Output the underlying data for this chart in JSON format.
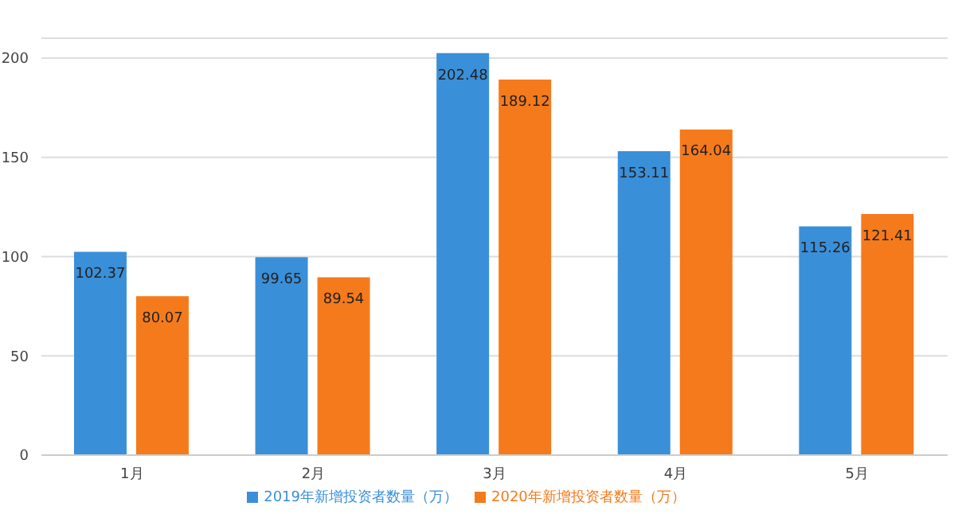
{
  "chart_data": {
    "type": "bar",
    "categories": [
      "1月",
      "2月",
      "3月",
      "4月",
      "5月"
    ],
    "series": [
      {
        "name": "2019年新增投资者数量（万）",
        "color": "#3a8fd9",
        "values": [
          102.37,
          99.65,
          202.48,
          153.11,
          115.26
        ]
      },
      {
        "name": "2020年新增投资者数量（万）",
        "color": "#f57a1c",
        "values": [
          80.07,
          89.54,
          189.12,
          164.04,
          121.41
        ]
      }
    ],
    "ylim": [
      0,
      210
    ],
    "yticks": [
      0,
      50,
      100,
      150,
      200
    ],
    "grid": "y",
    "legend": "bottom",
    "data_labels": true
  }
}
